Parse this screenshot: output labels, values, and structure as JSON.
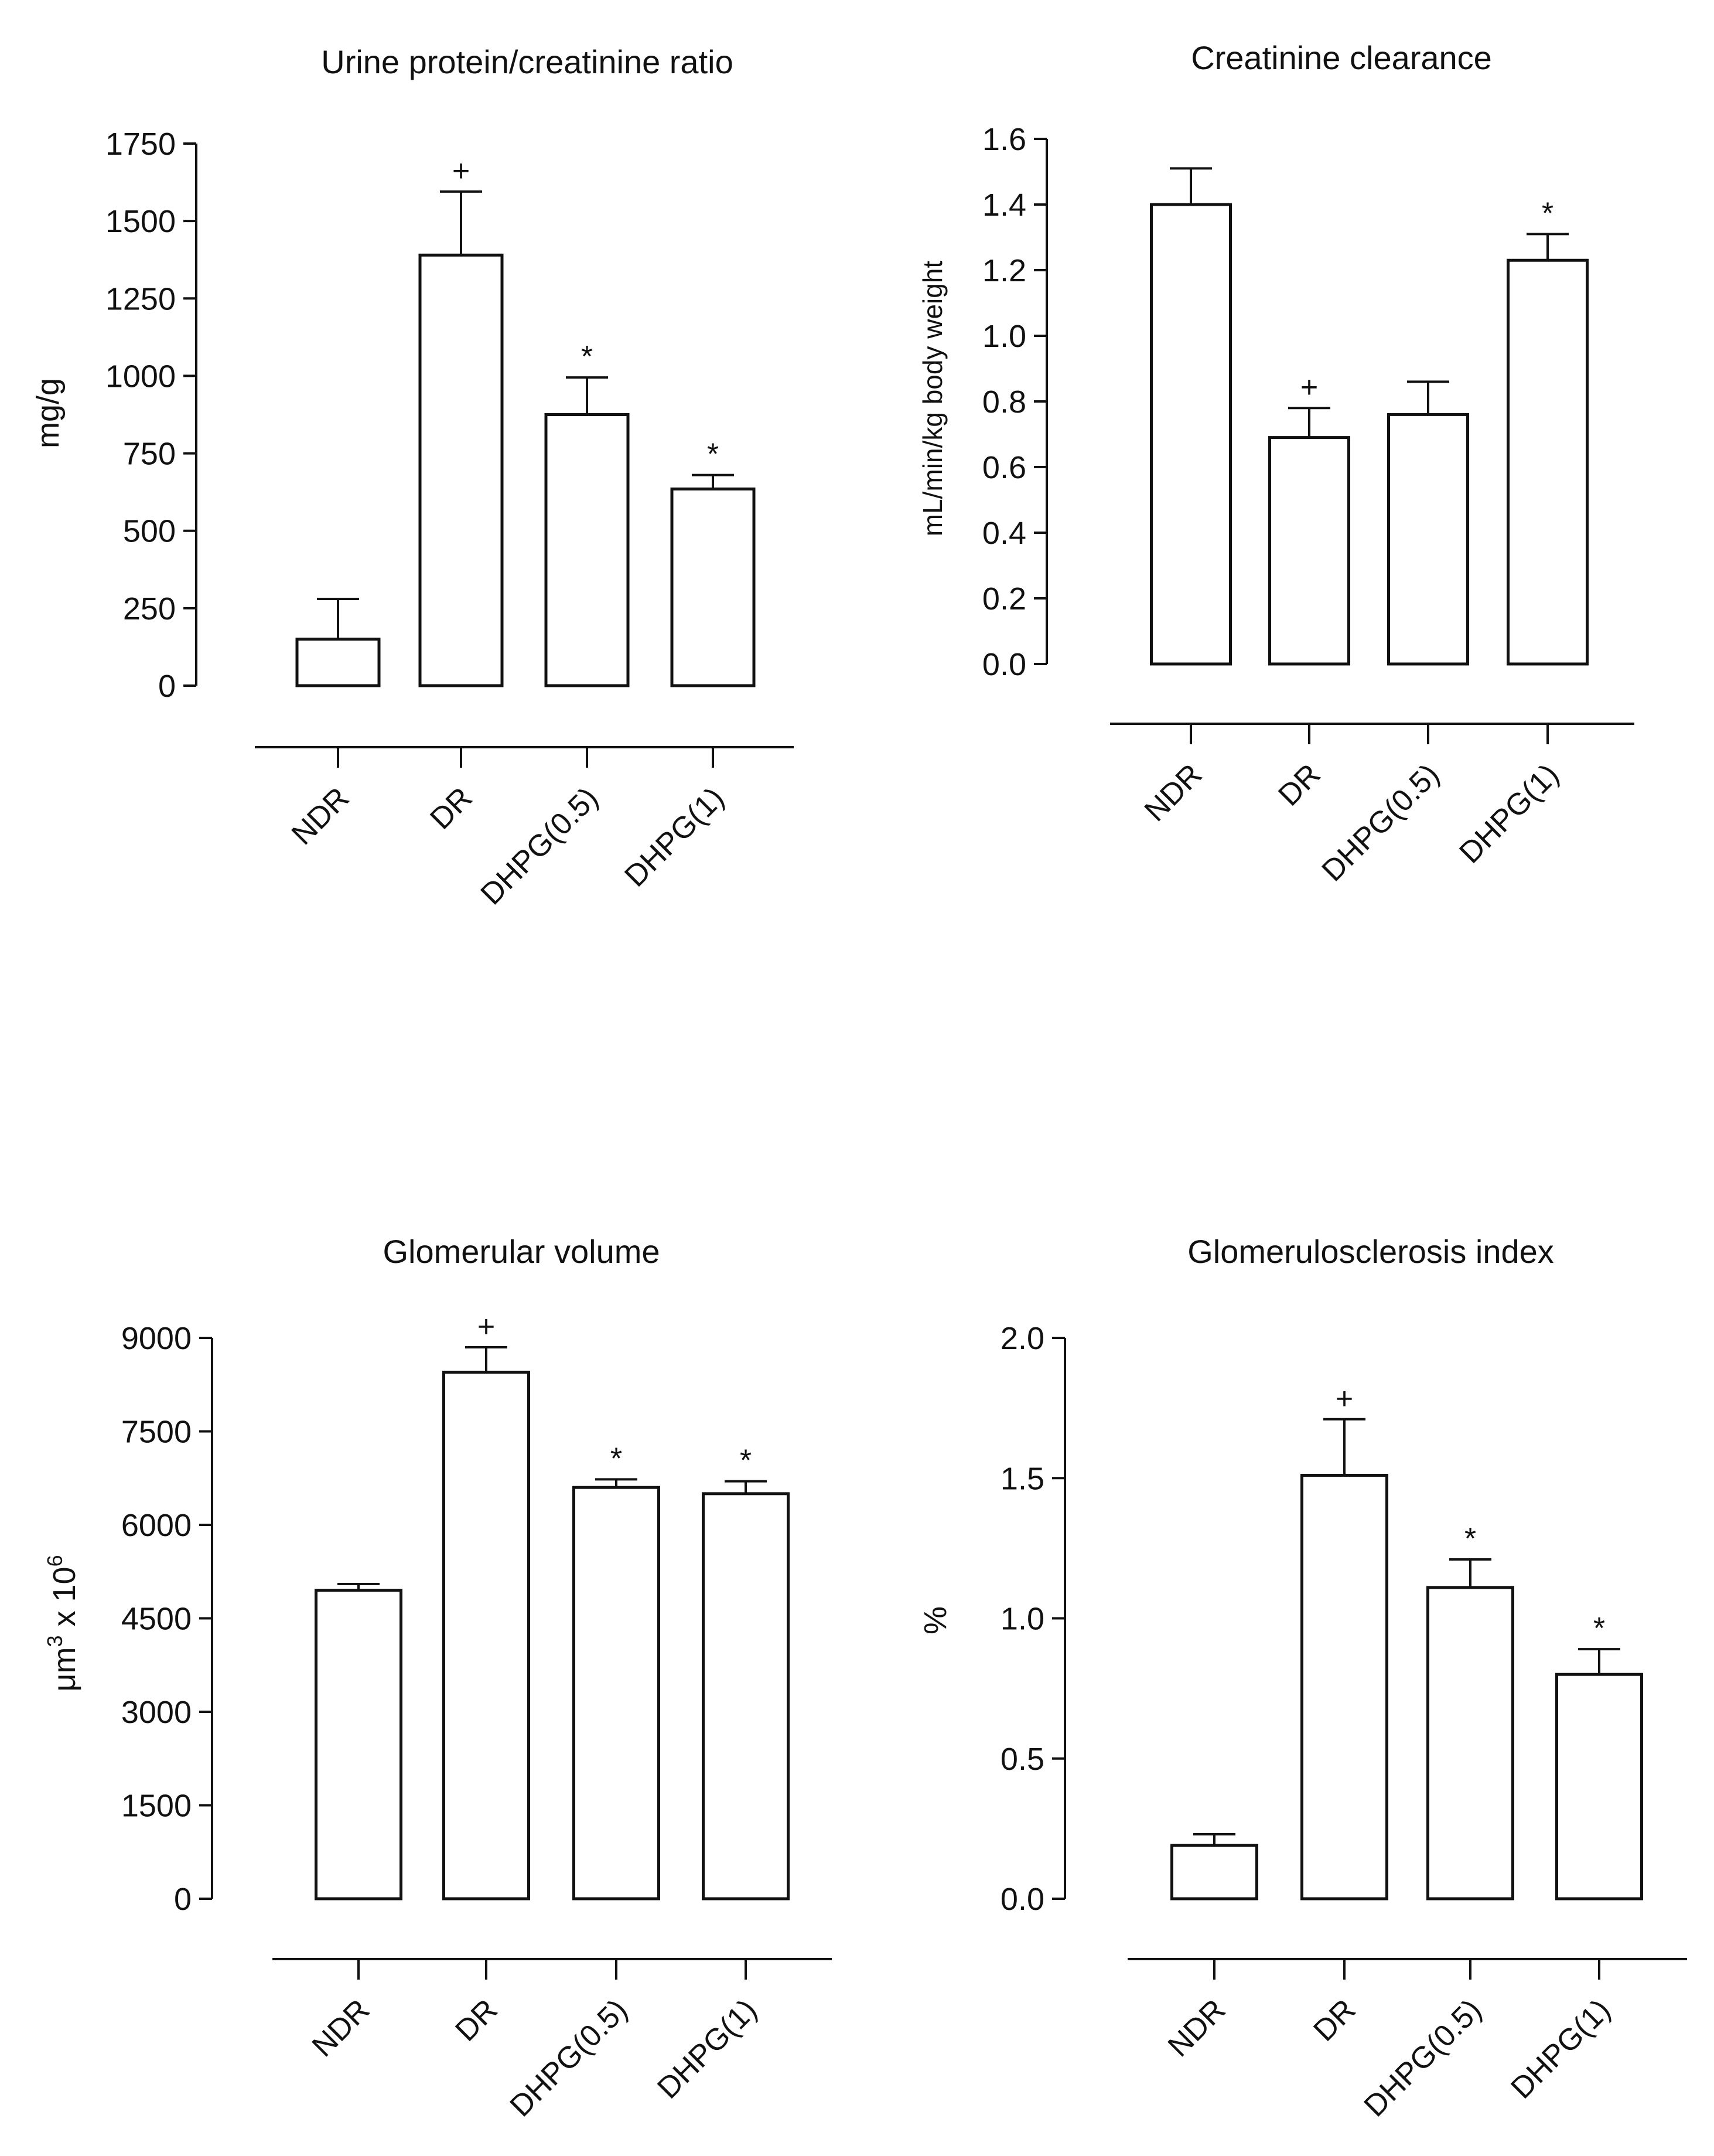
{
  "chart_data": [
    {
      "type": "bar",
      "title": "Urine protein/creatinine ratio",
      "xlabel": "",
      "ylabel": "mg/g",
      "ylim": [
        0,
        1750
      ],
      "yticks": [
        "0",
        "250",
        "500",
        "750",
        "1000",
        "1250",
        "1500",
        "1750"
      ],
      "categories": [
        "NDR",
        "DR",
        "DHPG(0.5)",
        "DHPG(1)"
      ],
      "values": [
        150,
        1390,
        875,
        635
      ],
      "errors": [
        130,
        205,
        120,
        45
      ],
      "annotations": [
        "",
        "+",
        "*",
        "*"
      ]
    },
    {
      "type": "bar",
      "title": "Creatinine clearance",
      "xlabel": "",
      "ylabel": "mL/min/kg body weight",
      "ylim": [
        0,
        1.6
      ],
      "yticks": [
        "0.0",
        "0.2",
        "0.4",
        "0.6",
        "0.8",
        "1.0",
        "1.2",
        "1.4",
        "1.6"
      ],
      "categories": [
        "NDR",
        "DR",
        "DHPG(0.5)",
        "DHPG(1)"
      ],
      "values": [
        1.4,
        0.69,
        0.76,
        1.23
      ],
      "errors": [
        0.11,
        0.09,
        0.1,
        0.08
      ],
      "annotations": [
        "",
        "+",
        "",
        "*"
      ]
    },
    {
      "type": "bar",
      "title": "Glomerular volume",
      "xlabel": "",
      "ylabel": "μm",
      "ylabel_sup1": "3",
      "ylabel_mid": " x 10",
      "ylabel_sup2": "6",
      "ylim": [
        0,
        9000
      ],
      "yticks": [
        "0",
        "1500",
        "3000",
        "4500",
        "6000",
        "7500",
        "9000"
      ],
      "categories": [
        "NDR",
        "DR",
        "DHPG(0.5)",
        "DHPG(1)"
      ],
      "values": [
        4950,
        8450,
        6600,
        6500
      ],
      "errors": [
        100,
        400,
        130,
        200
      ],
      "annotations": [
        "",
        "+",
        "*",
        "*"
      ]
    },
    {
      "type": "bar",
      "title": "Glomerulosclerosis index",
      "xlabel": "",
      "ylabel": "%",
      "ylim": [
        0,
        2.0
      ],
      "yticks": [
        "0.0",
        "0.5",
        "1.0",
        "1.5",
        "2.0"
      ],
      "categories": [
        "NDR",
        "DR",
        "DHPG(0.5)",
        "DHPG(1)"
      ],
      "values": [
        0.19,
        1.51,
        1.11,
        0.8
      ],
      "errors": [
        0.04,
        0.2,
        0.1,
        0.09
      ],
      "annotations": [
        "",
        "+",
        "*",
        "*"
      ]
    }
  ]
}
